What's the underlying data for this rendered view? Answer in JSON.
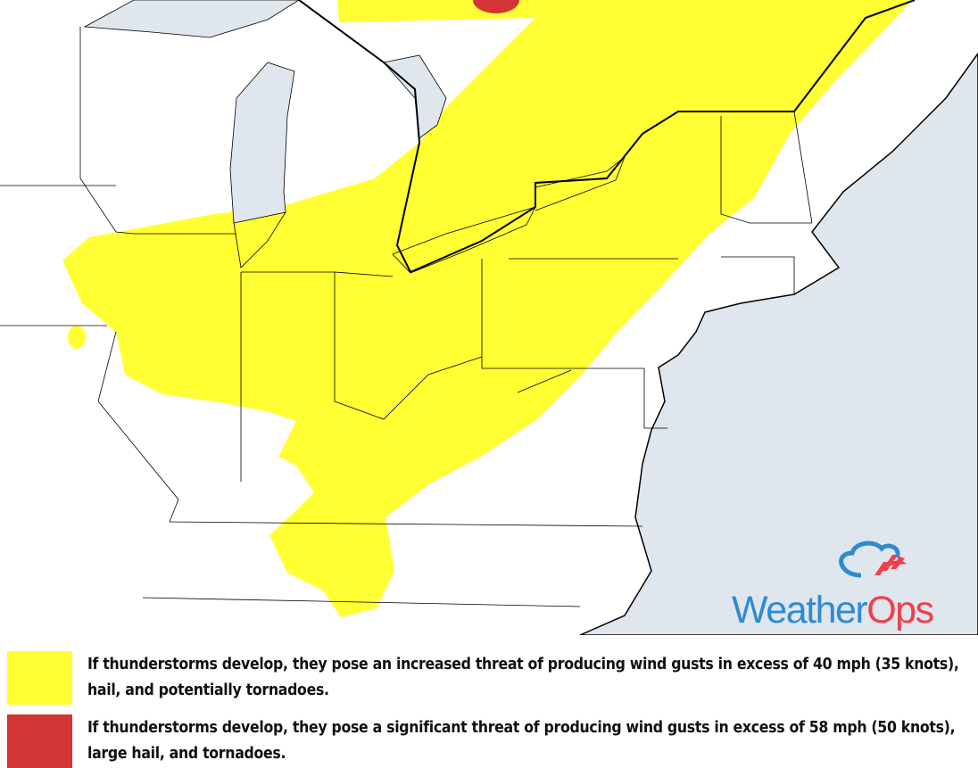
{
  "map": {
    "colors": {
      "water": "#dfe6ee",
      "land": "#ffffff",
      "increased_threat": "#ffff33",
      "significant_threat": "#d33434",
      "borders": "#000000"
    }
  },
  "logo": {
    "text_part1": "Weather",
    "text_part2": "Ops",
    "colors": {
      "blue": "#2e8bd2",
      "red": "#f0404a"
    }
  },
  "legend": [
    {
      "color": "#ffff33",
      "text": "If thunderstorms develop, they pose an increased threat of producing wind gusts in excess of 40 mph (35 knots), hail, and potentially tornadoes."
    },
    {
      "color": "#d33434",
      "text": "If thunderstorms develop, they pose a significant threat of producing wind gusts in excess of 58 mph (50 knots), large hail, and tornadoes."
    }
  ]
}
